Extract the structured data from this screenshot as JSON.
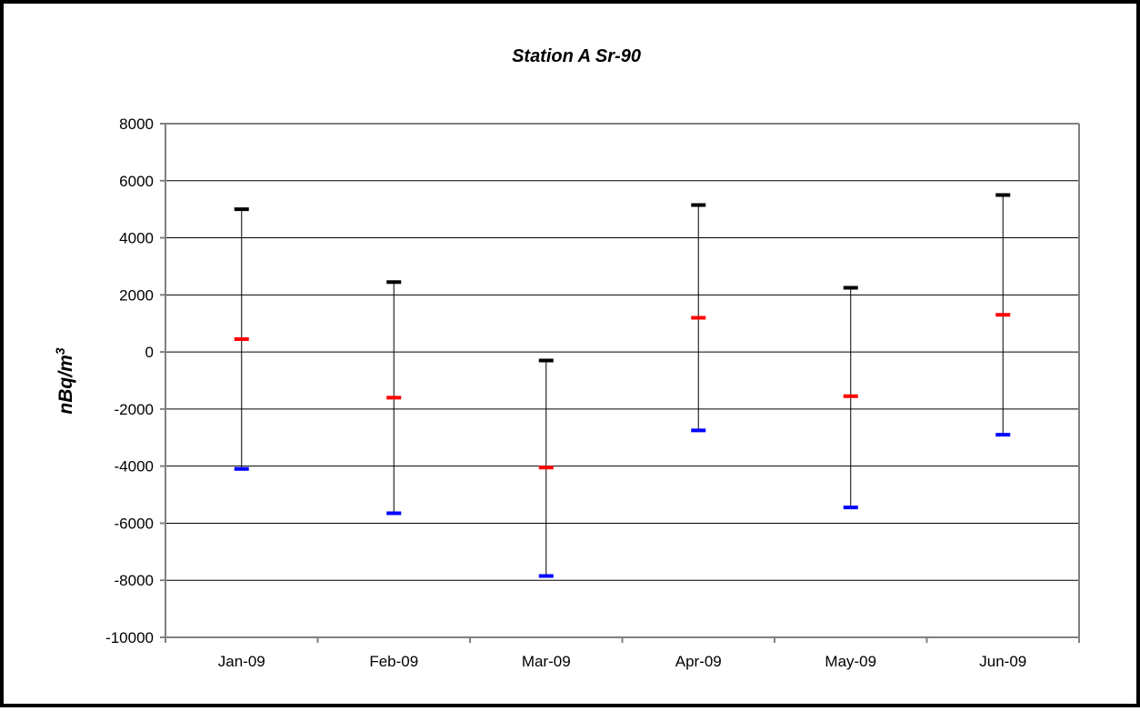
{
  "chart_data": {
    "type": "scatter",
    "subtype": "high-low-mid",
    "title": "Station A Sr-90",
    "xlabel": "",
    "ylabel": "nBq/m",
    "ylabel_superscript": "3",
    "categories": [
      "Jan-09",
      "Feb-09",
      "Mar-09",
      "Apr-09",
      "May-09",
      "Jun-09"
    ],
    "ylim": [
      -10000,
      8000
    ],
    "yticks": [
      8000,
      6000,
      4000,
      2000,
      0,
      -2000,
      -4000,
      -6000,
      -8000,
      -10000
    ],
    "grid": true,
    "legend": "none",
    "series": [
      {
        "name": "",
        "color": "#000000",
        "values": [
          5000,
          2450,
          -300,
          5150,
          2250,
          5500
        ]
      },
      {
        "name": "",
        "color": "#ff0000",
        "values": [
          450,
          -1600,
          -4050,
          1200,
          -1550,
          1300
        ]
      },
      {
        "name": "",
        "color": "#0000ff",
        "values": [
          -4100,
          -5650,
          -7850,
          -2750,
          -5450,
          -2900
        ]
      }
    ],
    "colors": {
      "title": "#0000ff",
      "ylabel": "#0000ff",
      "axis": "#808080",
      "grid": "#000000",
      "whisker": "#000000"
    }
  }
}
